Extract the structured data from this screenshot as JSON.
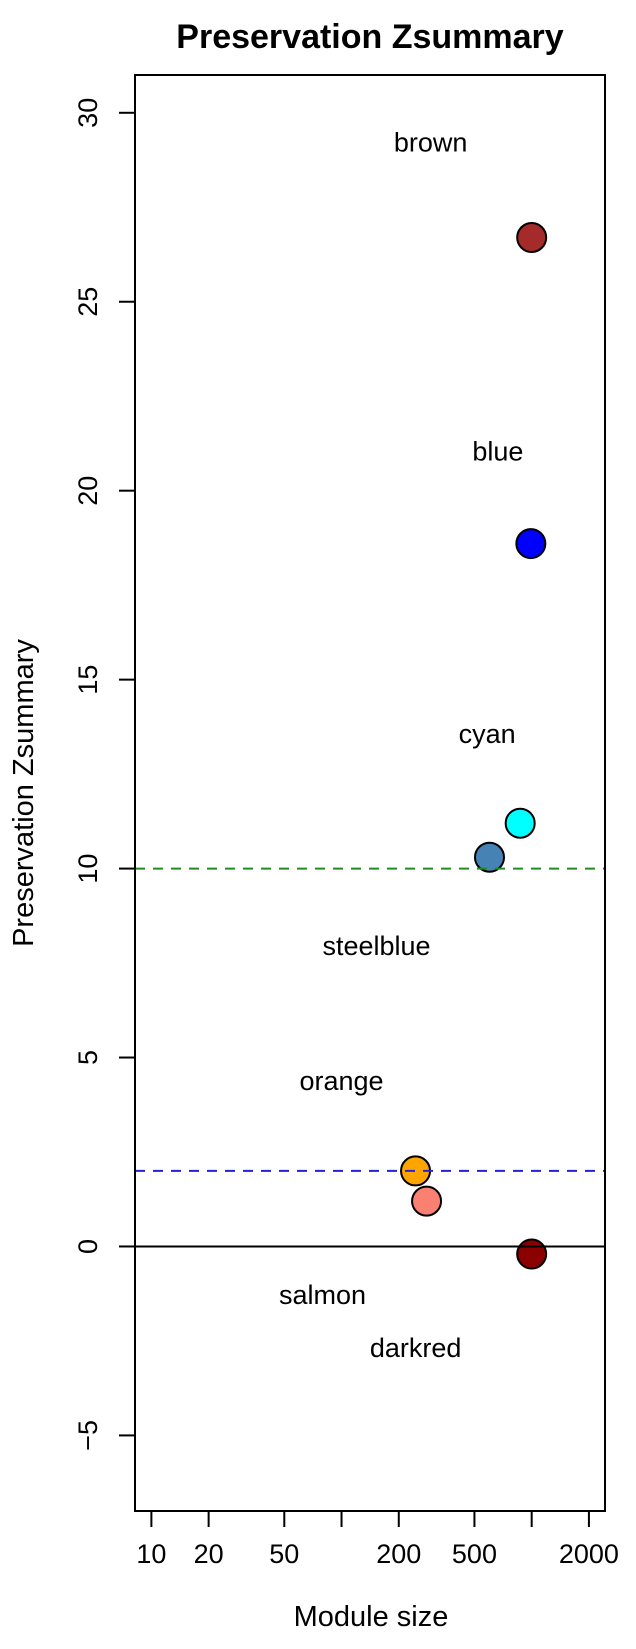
{
  "figure": {
    "title": "Preservation Zsummary",
    "xlabel": "Module size",
    "ylabel": "Preservation Zsummary"
  },
  "chart_data": {
    "type": "scatter",
    "title": "Preservation Zsummary",
    "xlabel": "Module size",
    "ylabel": "Preservation Zsummary",
    "x_scale": "log10",
    "xlim": [
      8.2,
      2430
    ],
    "ylim": [
      -7,
      31
    ],
    "grid": false,
    "legend": "none",
    "x_ticks": [
      {
        "value": 10,
        "label": "10"
      },
      {
        "value": 20,
        "label": "20"
      },
      {
        "value": 50,
        "label": "50"
      },
      {
        "value": 100,
        "label": ""
      },
      {
        "value": 200,
        "label": "200"
      },
      {
        "value": 500,
        "label": "500"
      },
      {
        "value": 1000,
        "label": ""
      },
      {
        "value": 2000,
        "label": "2000"
      }
    ],
    "y_ticks": [
      {
        "value": -5,
        "label": "−5"
      },
      {
        "value": 0,
        "label": "0"
      },
      {
        "value": 5,
        "label": "5"
      },
      {
        "value": 10,
        "label": "10"
      },
      {
        "value": 15,
        "label": "15"
      },
      {
        "value": 20,
        "label": "20"
      },
      {
        "value": 25,
        "label": "25"
      },
      {
        "value": 30,
        "label": "30"
      }
    ],
    "reference_lines": [
      {
        "value": 10,
        "color": "#228B22",
        "style": "dashed",
        "name": "zsummary-threshold-10"
      },
      {
        "value": 2,
        "color": "#2222DD",
        "style": "dashed",
        "name": "zsummary-threshold-2"
      },
      {
        "value": 0,
        "color": "#000000",
        "style": "solid",
        "name": "zero-line"
      }
    ],
    "point_style": {
      "radius": 14.5,
      "stroke": "#000000",
      "stroke_width": 2
    },
    "points": [
      {
        "module": "brown",
        "color": "#A52A2A",
        "module_size": 1000,
        "zsummary": 26.7,
        "label_offset": [
          -101,
          -95
        ]
      },
      {
        "module": "blue",
        "color": "#0000FF",
        "module_size": 990,
        "zsummary": 18.6,
        "label_offset": [
          -33,
          -92
        ]
      },
      {
        "module": "cyan",
        "color": "#00FFFF",
        "module_size": 870,
        "zsummary": 11.2,
        "label_offset": [
          -33,
          -89
        ]
      },
      {
        "module": "steelblue",
        "color": "#4682B4",
        "module_size": 600,
        "zsummary": 10.3,
        "label_offset": [
          -113,
          89
        ]
      },
      {
        "module": "orange",
        "color": "#FFA500",
        "module_size": 245,
        "zsummary": 2.0,
        "label_offset": [
          -74,
          -90
        ]
      },
      {
        "module": "salmon",
        "color": "#FA8072",
        "module_size": 280,
        "zsummary": 1.2,
        "label_offset": [
          -104,
          94
        ]
      },
      {
        "module": "darkred",
        "color": "#8B0000",
        "module_size": 1000,
        "zsummary": -0.2,
        "label_offset": [
          -116,
          94
        ]
      }
    ]
  }
}
